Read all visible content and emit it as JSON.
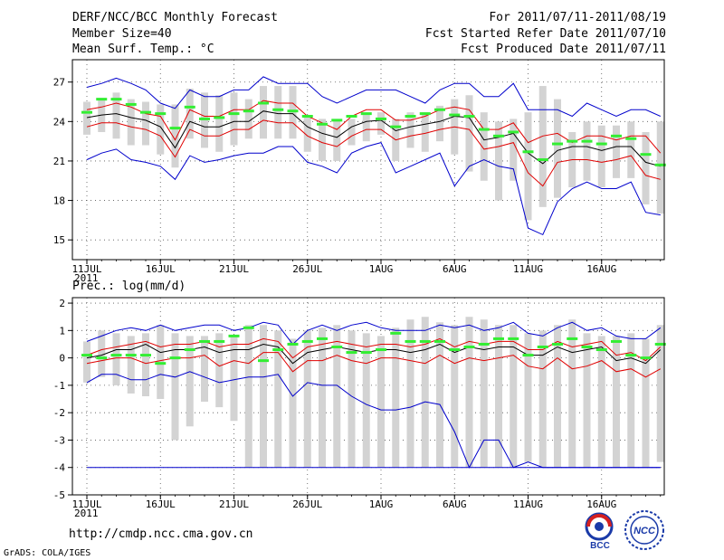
{
  "header": {
    "title": "DERF/NCC/BCC Monthly Forecast",
    "member_size": "Member Size=40",
    "variable": "Mean Surf. Temp.: °C",
    "period": "For 2011/07/11-2011/08/19",
    "fcst_started": "Fcst Started Refer Date 2011/07/10",
    "fcst_produced": "Fcst Produced Date 2011/07/11"
  },
  "footer": {
    "url": "http://cmdp.ncc.cma.gov.cn",
    "credit": "GrADS: COLA/IGES",
    "logo_bcc": "BCC",
    "logo_ncc": "NCC"
  },
  "colors": {
    "box": "#d3d3d3",
    "mean": "#000000",
    "spread": "#e00000",
    "extreme": "#0000cc",
    "obs": "#33ee33",
    "grid": "#555555"
  },
  "chart_data": [
    {
      "type": "line",
      "title": "Mean Surf. Temp.: °C",
      "x_tick_labels": [
        "11JUL",
        "16JUL",
        "21JUL",
        "26JUL",
        "1AUG",
        "6AUG",
        "11AUG",
        "16AUG"
      ],
      "x_year_label": "2011",
      "ylim": [
        13.5,
        28.7
      ],
      "y_ticks": [
        "15",
        "18",
        "21",
        "24",
        "27"
      ],
      "days": 40,
      "series": [
        {
          "name": "max",
          "values": [
            26.6,
            26.9,
            27.3,
            26.9,
            26.4,
            25.4,
            25.0,
            26.4,
            25.9,
            25.9,
            26.4,
            26.4,
            27.4,
            26.9,
            26.9,
            26.9,
            25.9,
            25.4,
            25.9,
            26.4,
            26.4,
            26.4,
            25.9,
            25.4,
            26.4,
            26.9,
            26.9,
            25.9,
            25.9,
            26.9,
            24.9,
            24.9,
            24.9,
            24.4,
            25.4,
            24.9,
            24.4,
            24.9,
            24.9,
            24.4
          ]
        },
        {
          "name": "upper",
          "values": [
            24.9,
            25.1,
            25.4,
            25.1,
            24.6,
            24.4,
            22.6,
            24.9,
            24.4,
            24.4,
            24.9,
            24.9,
            25.6,
            25.4,
            25.4,
            24.4,
            23.9,
            23.4,
            24.4,
            24.9,
            24.9,
            24.1,
            24.1,
            24.4,
            24.9,
            25.1,
            24.9,
            23.4,
            23.4,
            23.9,
            22.4,
            22.9,
            23.1,
            22.4,
            22.9,
            22.9,
            22.6,
            22.9,
            22.9,
            21.6
          ]
        },
        {
          "name": "mean",
          "values": [
            24.3,
            24.5,
            24.6,
            24.3,
            24.1,
            23.6,
            22.0,
            24.0,
            23.6,
            23.6,
            24.0,
            24.0,
            24.8,
            24.6,
            24.6,
            23.6,
            23.1,
            22.8,
            23.6,
            24.0,
            24.1,
            23.3,
            23.6,
            23.8,
            24.0,
            24.4,
            24.3,
            22.6,
            22.8,
            23.1,
            21.6,
            20.8,
            21.8,
            22.1,
            22.1,
            21.8,
            22.1,
            22.1,
            20.9,
            20.6
          ]
        },
        {
          "name": "lower",
          "values": [
            23.6,
            23.9,
            23.9,
            23.6,
            23.4,
            22.9,
            21.3,
            23.4,
            22.9,
            22.9,
            23.4,
            23.4,
            24.1,
            23.9,
            23.9,
            22.9,
            22.4,
            22.1,
            22.9,
            23.4,
            23.4,
            22.6,
            22.9,
            23.1,
            23.4,
            23.6,
            23.4,
            21.9,
            22.1,
            22.4,
            20.1,
            19.1,
            20.9,
            21.1,
            21.1,
            20.9,
            21.1,
            21.4,
            19.9,
            19.6
          ]
        },
        {
          "name": "min",
          "values": [
            21.1,
            21.6,
            21.9,
            21.1,
            20.9,
            20.6,
            19.6,
            21.4,
            20.9,
            21.1,
            21.4,
            21.6,
            21.6,
            22.1,
            22.1,
            20.9,
            20.6,
            20.1,
            21.6,
            22.1,
            22.4,
            20.1,
            20.6,
            21.1,
            21.6,
            19.1,
            20.6,
            21.1,
            20.6,
            20.4,
            15.9,
            15.4,
            17.9,
            18.9,
            19.4,
            18.9,
            18.9,
            19.4,
            17.1,
            16.9
          ]
        },
        {
          "name": "observed",
          "values": [
            24.7,
            25.7,
            25.7,
            25.3,
            24.7,
            24.6,
            23.5,
            25.1,
            24.2,
            24.3,
            24.6,
            24.8,
            25.4,
            24.9,
            24.8,
            24.4,
            23.8,
            24.1,
            24.4,
            24.6,
            24.2,
            23.6,
            24.4,
            24.6,
            24.9,
            24.5,
            24.4,
            23.4,
            22.9,
            23.2,
            21.7,
            21.1,
            22.3,
            22.5,
            22.5,
            22.3,
            22.9,
            22.7,
            21.5,
            20.7
          ]
        },
        {
          "name": "box_top",
          "values": [
            25.5,
            25.7,
            26.2,
            25.7,
            25.5,
            25.3,
            25.3,
            26.5,
            26.2,
            26.0,
            26.2,
            25.7,
            26.7,
            26.7,
            26.7,
            24.5,
            24.2,
            24.2,
            24.2,
            24.5,
            24.7,
            24.2,
            24.7,
            24.7,
            25.2,
            25.7,
            26.0,
            24.7,
            24.0,
            24.2,
            24.7,
            26.7,
            25.7,
            23.2,
            24.0,
            23.7,
            23.7,
            24.0,
            23.2,
            24.0
          ]
        },
        {
          "name": "box_bottom",
          "values": [
            23.0,
            23.2,
            22.7,
            22.2,
            22.2,
            21.5,
            20.5,
            22.7,
            22.0,
            21.7,
            22.2,
            22.7,
            22.7,
            22.7,
            22.7,
            21.7,
            21.0,
            21.0,
            22.2,
            22.5,
            23.0,
            21.0,
            22.0,
            21.7,
            22.5,
            21.5,
            20.2,
            19.5,
            18.0,
            19.5,
            16.5,
            17.5,
            18.2,
            19.0,
            19.5,
            19.0,
            19.7,
            19.7,
            17.7,
            17.0
          ]
        }
      ]
    },
    {
      "type": "line",
      "title": "Prec.: log(mm/d)",
      "x_tick_labels": [
        "11JUL",
        "16JUL",
        "21JUL",
        "26JUL",
        "1AUG",
        "6AUG",
        "11AUG",
        "16AUG"
      ],
      "x_year_label": "2011",
      "ylim": [
        -5,
        2.2
      ],
      "y_ticks": [
        "-5",
        "-4",
        "-3",
        "-2",
        "-1",
        "0",
        "1",
        "2"
      ],
      "days": 40,
      "series": [
        {
          "name": "max",
          "values": [
            0.6,
            0.8,
            1.0,
            1.1,
            1.0,
            1.2,
            1.0,
            1.1,
            1.2,
            1.2,
            1.0,
            1.1,
            1.3,
            1.2,
            0.5,
            1.0,
            1.2,
            1.0,
            1.2,
            1.3,
            1.1,
            1.0,
            1.0,
            1.0,
            1.2,
            1.1,
            1.2,
            1.0,
            1.1,
            1.3,
            0.9,
            0.8,
            1.1,
            1.3,
            1.0,
            1.1,
            0.8,
            0.7,
            0.7,
            1.1
          ]
        },
        {
          "name": "upper",
          "values": [
            0.1,
            0.3,
            0.4,
            0.5,
            0.6,
            0.4,
            0.5,
            0.5,
            0.6,
            0.4,
            0.5,
            0.5,
            0.7,
            0.6,
            0.0,
            0.4,
            0.5,
            0.6,
            0.5,
            0.4,
            0.5,
            0.5,
            0.4,
            0.5,
            0.7,
            0.4,
            0.6,
            0.5,
            0.6,
            0.6,
            0.3,
            0.3,
            0.6,
            0.4,
            0.5,
            0.6,
            0.1,
            0.2,
            -0.1,
            0.4
          ]
        },
        {
          "name": "mean",
          "values": [
            0.0,
            0.1,
            0.3,
            0.3,
            0.5,
            0.2,
            0.3,
            0.3,
            0.4,
            0.2,
            0.3,
            0.3,
            0.5,
            0.4,
            -0.2,
            0.2,
            0.3,
            0.4,
            0.3,
            0.2,
            0.3,
            0.3,
            0.2,
            0.3,
            0.5,
            0.2,
            0.4,
            0.3,
            0.4,
            0.4,
            0.1,
            0.1,
            0.4,
            0.2,
            0.3,
            0.4,
            -0.1,
            0.0,
            -0.2,
            0.3
          ]
        },
        {
          "name": "lower",
          "values": [
            -0.2,
            -0.1,
            0.0,
            0.0,
            -0.2,
            -0.1,
            0.0,
            0.0,
            0.1,
            -0.3,
            -0.1,
            -0.2,
            0.2,
            0.2,
            -0.5,
            -0.1,
            -0.1,
            0.1,
            -0.1,
            -0.2,
            0.0,
            0.0,
            -0.1,
            -0.2,
            0.1,
            -0.2,
            0.0,
            -0.1,
            0.0,
            0.1,
            -0.3,
            -0.4,
            0.0,
            -0.4,
            -0.3,
            -0.1,
            -0.5,
            -0.4,
            -0.7,
            -0.4
          ]
        },
        {
          "name": "min",
          "values": [
            -0.9,
            -0.6,
            -0.6,
            -0.8,
            -0.8,
            -0.6,
            -0.7,
            -0.5,
            -0.7,
            -0.9,
            -0.8,
            -0.7,
            -0.7,
            -0.6,
            -1.4,
            -0.9,
            -1.0,
            -1.0,
            -1.4,
            -1.7,
            -1.9,
            -1.9,
            -1.8,
            -1.6,
            -1.7,
            -2.7,
            -4.0,
            -3.0,
            -3.0,
            -4.0,
            -3.8,
            -4.0,
            -4.0,
            -4.0,
            -4.0,
            -4.0,
            -4.0,
            -4.0,
            -4.0,
            -4.0
          ]
        },
        {
          "name": "observed",
          "values": [
            0.1,
            0.0,
            0.1,
            0.1,
            0.1,
            -0.2,
            0.0,
            0.3,
            0.6,
            0.6,
            0.8,
            1.1,
            -0.1,
            0.3,
            0.5,
            0.6,
            0.7,
            0.4,
            0.2,
            0.2,
            0.3,
            0.9,
            0.6,
            0.6,
            0.6,
            0.3,
            0.4,
            0.5,
            0.7,
            0.7,
            0.1,
            0.4,
            0.5,
            0.7,
            0.4,
            0.3,
            0.6,
            0.1,
            0.0,
            0.5
          ]
        },
        {
          "name": "box_top",
          "values": [
            0.6,
            1.0,
            0.9,
            0.8,
            0.9,
            1.2,
            0.9,
            0.8,
            0.8,
            0.9,
            0.8,
            1.2,
            1.2,
            1.0,
            0.7,
            1.0,
            1.1,
            1.2,
            1.0,
            0.9,
            0.8,
            1.1,
            1.4,
            1.5,
            1.3,
            1.2,
            1.5,
            1.4,
            1.2,
            1.2,
            0.9,
            1.0,
            1.2,
            1.4,
            0.9,
            0.8,
            0.8,
            0.9,
            0.7,
            1.2
          ]
        },
        {
          "name": "box_bottom",
          "values": [
            -0.9,
            -0.7,
            -1.0,
            -1.3,
            -1.4,
            -1.5,
            -3.0,
            -2.5,
            -1.6,
            -1.8,
            -2.3,
            -4.0,
            -4.0,
            -4.0,
            -4.0,
            -4.0,
            -4.0,
            -4.0,
            -4.0,
            -4.0,
            -4.0,
            -4.0,
            -4.0,
            -4.0,
            -4.0,
            -4.0,
            -4.0,
            -4.0,
            -4.0,
            -4.0,
            -3.8,
            -4.0,
            -4.0,
            -4.0,
            -4.0,
            -4.0,
            -4.0,
            -4.0,
            -4.0,
            -3.8
          ]
        },
        {
          "name": "floor",
          "values": [
            -4.0,
            -4.0
          ]
        }
      ]
    }
  ]
}
